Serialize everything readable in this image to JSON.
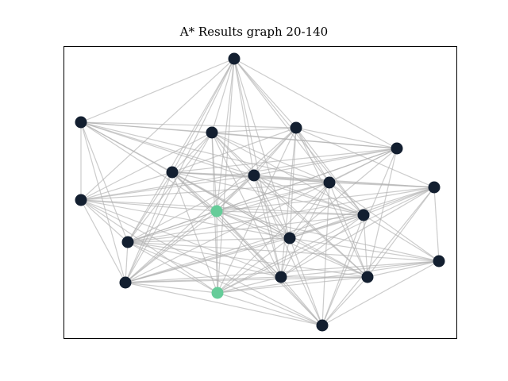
{
  "title": "A* Results graph 20-140",
  "colors": {
    "node_default": "#131f30",
    "node_highlight": "#66cc99",
    "edge": "#b0b0b0",
    "frame": "#000000",
    "background": "#ffffff"
  },
  "graph": {
    "nodes": [
      {
        "id": 0,
        "highlight": false
      },
      {
        "id": 1,
        "highlight": false
      },
      {
        "id": 2,
        "highlight": false
      },
      {
        "id": 3,
        "highlight": false
      },
      {
        "id": 4,
        "highlight": false
      },
      {
        "id": 5,
        "highlight": false
      },
      {
        "id": 6,
        "highlight": false
      },
      {
        "id": 7,
        "highlight": false
      },
      {
        "id": 8,
        "highlight": false
      },
      {
        "id": 9,
        "highlight": true
      },
      {
        "id": 10,
        "highlight": false
      },
      {
        "id": 11,
        "highlight": false
      },
      {
        "id": 12,
        "highlight": false
      },
      {
        "id": 13,
        "highlight": false
      },
      {
        "id": 14,
        "highlight": false
      },
      {
        "id": 15,
        "highlight": false
      },
      {
        "id": 16,
        "highlight": false
      },
      {
        "id": 17,
        "highlight": true
      },
      {
        "id": 18,
        "highlight": false
      },
      {
        "id": 19,
        "highlight": false
      }
    ]
  }
}
